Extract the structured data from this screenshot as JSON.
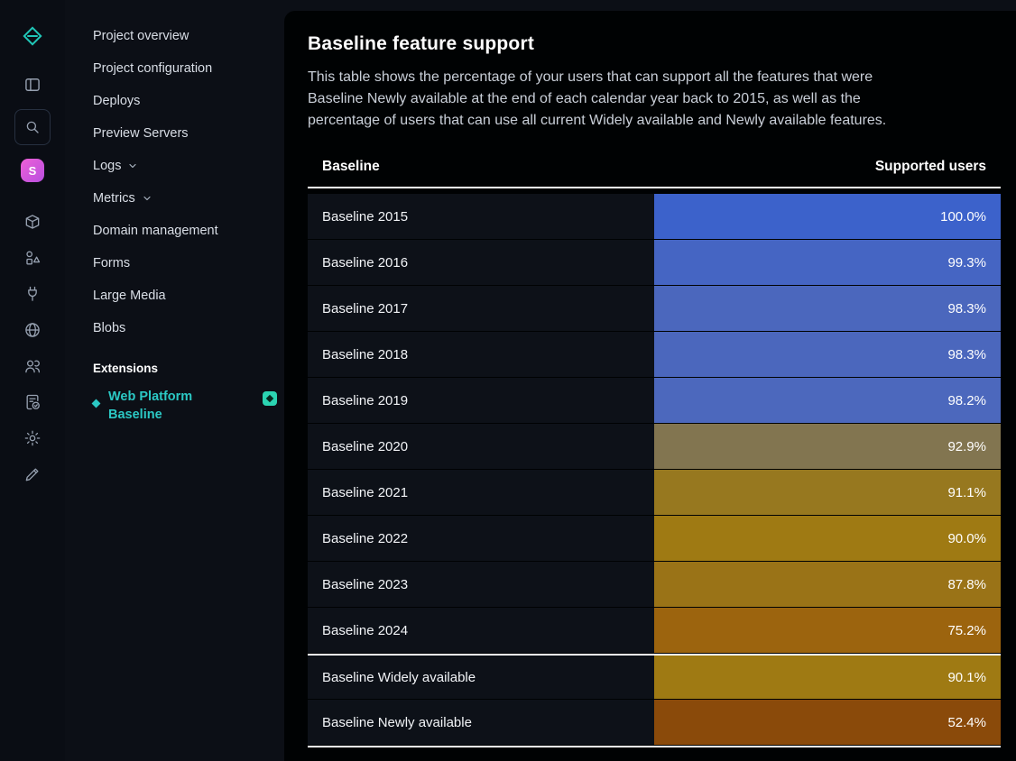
{
  "rail": {
    "avatar_letter": "S",
    "icons": [
      "netlify-logo",
      "sidebar-toggle",
      "search",
      "avatar",
      "deploys-box",
      "extensions-shapes",
      "integrations-plug",
      "domains-globe",
      "team-members",
      "audit-log",
      "settings-gear",
      "edit-pencil"
    ]
  },
  "sidebar": {
    "nav_items": [
      {
        "label": "Project overview",
        "chevron": false
      },
      {
        "label": "Project configuration",
        "chevron": false
      },
      {
        "label": "Deploys",
        "chevron": false
      },
      {
        "label": "Preview Servers",
        "chevron": false
      },
      {
        "label": "Logs",
        "chevron": true
      },
      {
        "label": "Metrics",
        "chevron": true
      },
      {
        "label": "Domain management",
        "chevron": false
      },
      {
        "label": "Forms",
        "chevron": false
      },
      {
        "label": "Large Media",
        "chevron": false
      },
      {
        "label": "Blobs",
        "chevron": false
      }
    ],
    "extensions_header": "Extensions",
    "extension_item": "Web Platform Baseline"
  },
  "main": {
    "title": "Baseline feature support",
    "description": "This table shows the percentage of your users that can support all the features that were Baseline Newly available at the end of each calendar year back to 2015, as well as the percentage of users that can use all current Widely available and Newly available features.",
    "table": {
      "columns": [
        "Baseline",
        "Supported users"
      ],
      "rows": [
        {
          "label": "Baseline 2015",
          "value": "100.0%",
          "color": "#3c62cb",
          "separator_above": false
        },
        {
          "label": "Baseline 2016",
          "value": "99.3%",
          "color": "#4565c3",
          "separator_above": false
        },
        {
          "label": "Baseline 2017",
          "value": "98.3%",
          "color": "#4b67bd",
          "separator_above": false
        },
        {
          "label": "Baseline 2018",
          "value": "98.3%",
          "color": "#4b67bd",
          "separator_above": false
        },
        {
          "label": "Baseline 2019",
          "value": "98.2%",
          "color": "#4c68bd",
          "separator_above": false
        },
        {
          "label": "Baseline 2020",
          "value": "92.9%",
          "color": "#827550",
          "separator_above": false
        },
        {
          "label": "Baseline 2021",
          "value": "91.1%",
          "color": "#97781f",
          "separator_above": false
        },
        {
          "label": "Baseline 2022",
          "value": "90.0%",
          "color": "#9f7a13",
          "separator_above": false
        },
        {
          "label": "Baseline 2023",
          "value": "87.8%",
          "color": "#9a7317",
          "separator_above": false
        },
        {
          "label": "Baseline 2024",
          "value": "75.2%",
          "color": "#9c640e",
          "separator_above": false
        },
        {
          "label": "Baseline Widely available",
          "value": "90.1%",
          "color": "#9f7a13",
          "separator_above": true
        },
        {
          "label": "Baseline Newly available",
          "value": "52.4%",
          "color": "#8a4a0a",
          "separator_above": false
        }
      ]
    }
  }
}
